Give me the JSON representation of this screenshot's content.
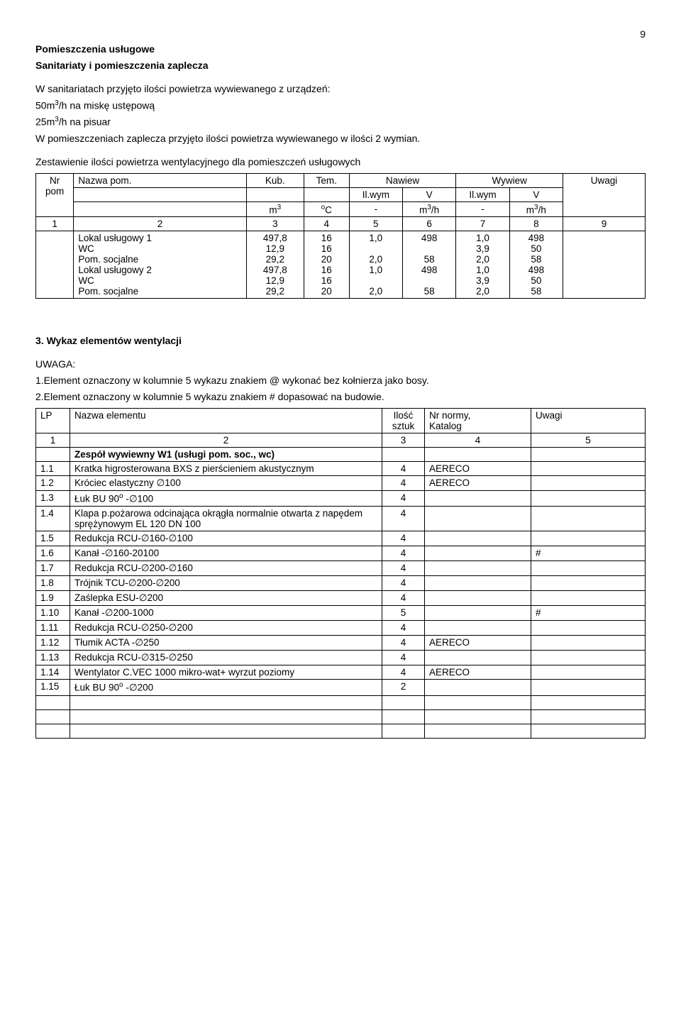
{
  "page_number": "9",
  "heading1": "Pomieszczenia usługowe",
  "heading2": "Sanitariaty i pomieszczenia zaplecza",
  "para1": "W sanitariatach przyjęto ilości powietrza wywiewanego z urządzeń:",
  "para2_a": "50m",
  "para2_b": "/h na miskę ustępową",
  "para3_a": "25m",
  "para3_b": "/h na pisuar",
  "para4": "W pomieszczeniach zaplecza przyjęto ilości powietrza wywiewanego w ilości 2 wymian.",
  "subheading1": "Zestawienie ilości powietrza wentylacyjnego dla pomieszczeń usługowych",
  "t1": {
    "h": {
      "nr": "Nr pom",
      "nazwa": "Nazwa pom.",
      "kub": "Kub.",
      "tem": "Tem.",
      "nawiew": "Nawiew",
      "wywiew": "Wywiew",
      "uwagi": "Uwagi",
      "ilwym1": "Il.wym",
      "v1": "V",
      "ilwym2": "Il.wym",
      "v2": "V",
      "m3": "m",
      "m3_sup": "3",
      "oc": "C",
      "oc_sup": "o",
      "dash": "-",
      "m3h": "m",
      "m3h_sup": "3",
      "m3h_suf": "/h"
    },
    "idx": {
      "c1": "1",
      "c2": "2",
      "c3": "3",
      "c4": "4",
      "c5": "5",
      "c6": "6",
      "c7": "7",
      "c8": "8",
      "c9": "9"
    },
    "rows": [
      {
        "name": "Lokal usługowy 1",
        "kub": "497,8",
        "tem": "16",
        "nw": "1,0",
        "nv": "498",
        "ww": "1,0",
        "wv": "498"
      },
      {
        "name": "WC",
        "kub": "12,9",
        "tem": "16",
        "nw": "",
        "nv": "",
        "ww": "3,9",
        "wv": "50"
      },
      {
        "name": "Pom. socjalne",
        "kub": "29,2",
        "tem": "20",
        "nw": "2,0",
        "nv": "58",
        "ww": "2,0",
        "wv": "58"
      },
      {
        "name": "Lokal usługowy 2",
        "kub": "497,8",
        "tem": "16",
        "nw": "1,0",
        "nv": "498",
        "ww": "1,0",
        "wv": "498"
      },
      {
        "name": "WC",
        "kub": "12,9",
        "tem": "16",
        "nw": "",
        "nv": "",
        "ww": "3,9",
        "wv": "50"
      },
      {
        "name": "Pom. socjalne",
        "kub": "29,2",
        "tem": "20",
        "nw": "2,0",
        "nv": "58",
        "ww": "2,0",
        "wv": "58"
      }
    ]
  },
  "section3_title": "3. Wykaz elementów wentylacji",
  "uwaga_label": "UWAGA:",
  "uwaga1": "1.Element oznaczony w kolumnie 5 wykazu znakiem @ wykonać bez kołnierza jako bosy.",
  "uwaga2": "2.Element oznaczony w kolumnie 5 wykazu znakiem #  dopasować na budowie.",
  "t2": {
    "h": {
      "lp": "LP",
      "name": "Nazwa elementu",
      "qty_a": "Ilość",
      "qty_b": "sztuk",
      "norm_a": "Nr normy,",
      "norm_b": "Katalog",
      "uwagi": "Uwagi"
    },
    "idx": {
      "c1": "1",
      "c2": "2",
      "c3": "3",
      "c4": "4",
      "c5": "5"
    },
    "grp": "Zespół wywiewny W1 (usługi pom. soc., wc)",
    "rows": [
      {
        "lp": "1.1",
        "name": "Kratka higrosterowana BXS z pierścieniem akustycznym",
        "qty": "4",
        "norm": "AERECO",
        "uw": ""
      },
      {
        "lp": "1.2",
        "name": "Króciec elastyczny ∅100",
        "qty": "4",
        "norm": "AERECO",
        "uw": ""
      },
      {
        "lp": "1.3",
        "name_a": "Łuk BU 90",
        "name_sup": "o",
        "name_b": " -∅100",
        "qty": "4",
        "norm": "",
        "uw": ""
      },
      {
        "lp": "1.4",
        "name": "Klapa p.pożarowa odcinająca okrągła  normalnie otwarta z napędem sprężynowym EL 120 DN 100",
        "qty": "4",
        "norm": "",
        "uw": ""
      },
      {
        "lp": "1.5",
        "name": "Redukcja RCU-∅160-∅100",
        "qty": "4",
        "norm": "",
        "uw": ""
      },
      {
        "lp": "1.6",
        "name": "Kanał -∅160-20100",
        "qty": "4",
        "norm": "",
        "uw": "#"
      },
      {
        "lp": "1.7",
        "name": "Redukcja RCU-∅200-∅160",
        "qty": "4",
        "norm": "",
        "uw": ""
      },
      {
        "lp": "1.8",
        "name": "Trójnik TCU-∅200-∅200",
        "qty": "4",
        "norm": "",
        "uw": ""
      },
      {
        "lp": "1.9",
        "name": "Zaślepka ESU-∅200",
        "qty": "4",
        "norm": "",
        "uw": ""
      },
      {
        "lp": "1.10",
        "name": "Kanał -∅200-1000",
        "qty": "5",
        "norm": "",
        "uw": "#"
      },
      {
        "lp": "1.11",
        "name": "Redukcja RCU-∅250-∅200",
        "qty": "4",
        "norm": "",
        "uw": ""
      },
      {
        "lp": "1.12",
        "name": "Tłumik ACTA -∅250",
        "qty": "4",
        "norm": "AERECO",
        "uw": ""
      },
      {
        "lp": "1.13",
        "name": "Redukcja RCU-∅315-∅250",
        "qty": "4",
        "norm": "",
        "uw": ""
      },
      {
        "lp": "1.14",
        "name": "Wentylator C.VEC 1000 mikro-wat+ wyrzut poziomy",
        "qty": "4",
        "norm": "AERECO",
        "uw": ""
      },
      {
        "lp": "1.15",
        "name_a": "Łuk BU 90",
        "name_sup": "o",
        "name_b": " -∅200",
        "qty": "2",
        "norm": "",
        "uw": ""
      }
    ]
  }
}
